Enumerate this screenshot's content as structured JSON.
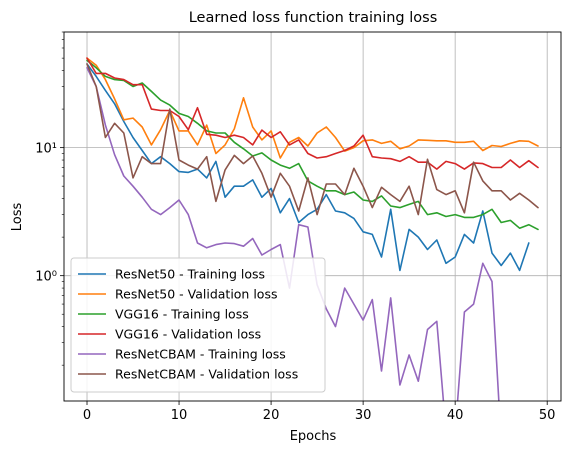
{
  "chart_data": {
    "type": "line",
    "title": "Learned loss function training loss",
    "xlabel": "Epochs",
    "ylabel": "Loss",
    "yscale": "log",
    "xlim": [
      -2.5,
      51.5
    ],
    "ylim": [
      0.105,
      80
    ],
    "grid": true,
    "legend_position": "lower-left",
    "x_ticks": [
      0,
      10,
      20,
      30,
      40,
      50
    ],
    "y_ticks": [
      {
        "value": 1,
        "label": "10⁰"
      },
      {
        "value": 10,
        "label": "10¹"
      }
    ],
    "series": [
      {
        "name": "ResNet50 - Training loss",
        "color": "#1f77b4",
        "values": [
          45,
          36,
          28,
          22,
          16,
          12,
          9.5,
          7.5,
          8.5,
          7.5,
          6.5,
          6.4,
          6.8,
          5.8,
          7.8,
          4.1,
          5.0,
          5.0,
          5.6,
          4.1,
          4.8,
          3.1,
          4.0,
          2.6,
          3.0,
          3.3,
          4.3,
          3.2,
          3.1,
          2.8,
          2.2,
          2.1,
          1.4,
          3.3,
          1.1,
          2.3,
          2.0,
          1.6,
          1.9,
          1.25,
          1.4,
          2.1,
          1.8,
          3.2,
          1.5,
          1.2,
          1.5,
          1.1,
          1.8
        ]
      },
      {
        "name": "ResNet50 - Validation loss",
        "color": "#ff7f0e",
        "values": [
          50,
          44,
          34,
          24,
          16.5,
          17,
          14.5,
          10.5,
          13.8,
          19.5,
          13.5,
          13.5,
          10.5,
          15,
          9.0,
          10.5,
          14.0,
          24.5,
          14.5,
          11.5,
          13.5,
          8.3,
          11.0,
          12.0,
          10.3,
          13.0,
          14.5,
          12.0,
          9.4,
          10.0,
          11.3,
          11.5,
          10.8,
          11.2,
          9.8,
          10.3,
          11.5,
          11.4,
          11.3,
          11.3,
          11.0,
          11.0,
          11.2,
          9.5,
          10.4,
          10.2,
          10.8,
          11.3,
          11.2,
          10.3
        ]
      },
      {
        "name": "VGG16 - Training loss",
        "color": "#2ca02c",
        "values": [
          48,
          42,
          36,
          34,
          33.5,
          30,
          32,
          27.5,
          23.5,
          21.5,
          18.5,
          17.5,
          15.5,
          13.5,
          13,
          13,
          11,
          9.8,
          8.6,
          9.1,
          8.0,
          7.3,
          6.9,
          7.5,
          5.5,
          5.0,
          4.6,
          4.6,
          4.3,
          4.5,
          3.9,
          3.8,
          4.2,
          3.5,
          3.4,
          3.6,
          3.8,
          3.0,
          3.1,
          2.9,
          3.0,
          2.85,
          2.85,
          3.0,
          3.3,
          2.6,
          2.7,
          2.35,
          2.5,
          2.3
        ]
      },
      {
        "name": "VGG16 - Validation loss",
        "color": "#d62728",
        "values": [
          50,
          38,
          38,
          35,
          34,
          31,
          31,
          20,
          19.5,
          19.5,
          17.5,
          13.8,
          20.5,
          12.7,
          12.5,
          12,
          12.5,
          12,
          10.5,
          13.7,
          12.0,
          13.3,
          10.5,
          11.5,
          9.0,
          8.3,
          8.5,
          9.0,
          9.5,
          10.3,
          12.5,
          8.5,
          8.3,
          8.2,
          7.8,
          8.5,
          7.7,
          7.7,
          6.8,
          7.8,
          7.5,
          6.8,
          7.6,
          7.5,
          7.0,
          7.0,
          8.0,
          7.0,
          7.9,
          7.0
        ]
      },
      {
        "name": "ResNetCBAM - Training loss",
        "color": "#9467bd",
        "values": [
          42,
          30,
          15,
          8.8,
          6.0,
          5.0,
          4.1,
          3.3,
          3.0,
          3.4,
          3.9,
          3.0,
          1.8,
          1.65,
          1.75,
          1.8,
          1.78,
          1.7,
          1.95,
          1.45,
          1.6,
          1.75,
          0.8,
          2.5,
          2.4,
          0.85,
          0.55,
          0.4,
          0.8,
          0.6,
          0.45,
          0.65,
          0.18,
          0.67,
          0.14,
          0.24,
          0.15,
          0.38,
          0.44,
          0.06,
          0.06,
          0.52,
          0.6,
          1.25,
          0.9,
          0.05
        ]
      },
      {
        "name": "ResNetCBAM - Validation loss",
        "color": "#8c564b",
        "values": [
          45,
          30,
          12,
          15.5,
          13,
          5.8,
          8.5,
          7.5,
          7.5,
          20,
          8.0,
          7.3,
          6.8,
          8.5,
          3.8,
          6.7,
          8.7,
          7.5,
          8.6,
          6.3,
          4.1,
          6.3,
          5.0,
          3.2,
          5.8,
          3.0,
          5.2,
          5.2,
          4.3,
          6.9,
          5.0,
          3.4,
          4.9,
          4.3,
          3.8,
          5.0,
          3.0,
          8.1,
          4.7,
          4.3,
          4.6,
          3.1,
          7.7,
          5.5,
          4.6,
          4.6,
          3.9,
          4.4,
          3.9,
          3.4
        ]
      }
    ]
  }
}
